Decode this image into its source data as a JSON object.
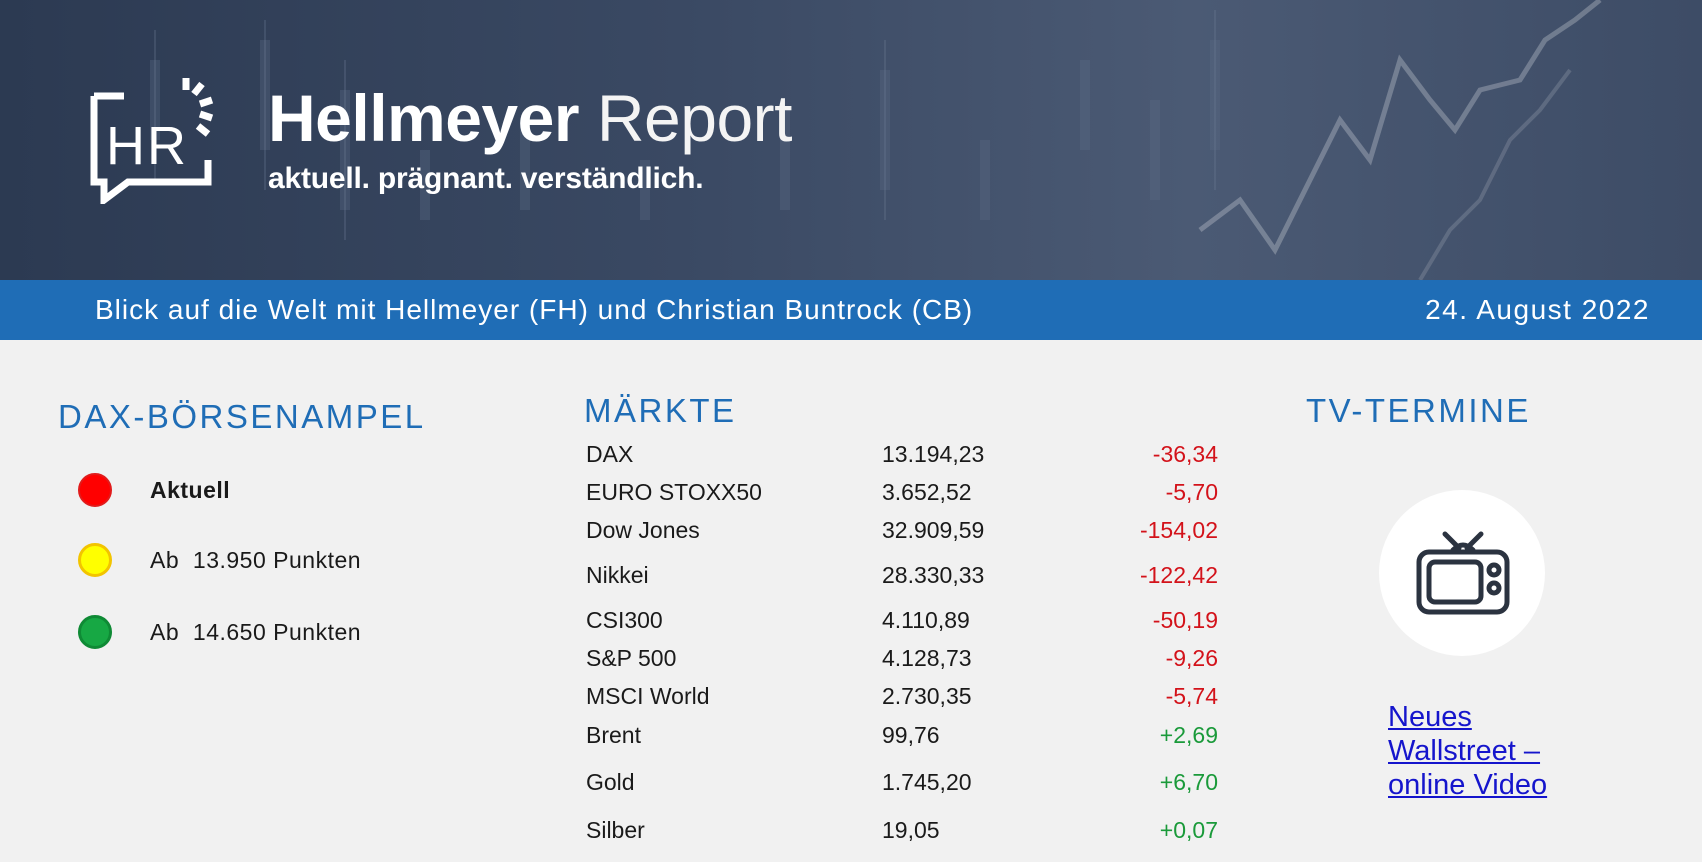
{
  "header": {
    "logo_text": "HR",
    "title_bold": "Hellmeyer",
    "title_light": "Report",
    "tagline": "aktuell. prägnant. verständlich."
  },
  "band": {
    "left_text": "Blick auf die Welt mit Hellmeyer (FH) und Christian Buntrock (CB)",
    "date": "24. August 2022"
  },
  "ampel": {
    "title": "DAX-BÖRSENAMPEL",
    "items": [
      {
        "color": "#ff0000",
        "label": "Aktuell"
      },
      {
        "color": "#ffff00",
        "label": "Ab  13.950 Punkten"
      },
      {
        "color": "#17a844",
        "label": "Ab  14.650 Punkten"
      }
    ]
  },
  "markets": {
    "title": "MÄRKTE",
    "rows": [
      {
        "name": "DAX",
        "value": "13.194,23",
        "change": "-36,34",
        "direction": "down"
      },
      {
        "name": "EURO STOXX50",
        "value": "3.652,52",
        "change": "-5,70",
        "direction": "down"
      },
      {
        "name": "Dow Jones",
        "value": "32.909,59",
        "change": "-154,02",
        "direction": "down"
      },
      {
        "name": "Nikkei",
        "value": "28.330,33",
        "change": "-122,42",
        "direction": "down"
      },
      {
        "name": "CSI300",
        "value": "4.110,89",
        "change": "-50,19",
        "direction": "down"
      },
      {
        "name": "S&P 500",
        "value": "4.128,73",
        "change": "-9,26",
        "direction": "down"
      },
      {
        "name": "MSCI World",
        "value": "2.730,35",
        "change": "-5,74",
        "direction": "down"
      },
      {
        "name": "Brent",
        "value": "99,76",
        "change": "+2,69",
        "direction": "up"
      },
      {
        "name": "Gold",
        "value": "1.745,20",
        "change": "+6,70",
        "direction": "up"
      },
      {
        "name": "Silber",
        "value": "19,05",
        "change": "+0,07",
        "direction": "up"
      }
    ]
  },
  "tv": {
    "title": "TV-TERMINE",
    "icon": "tv-icon",
    "link_text": "Neues Wallstreet – online Video"
  },
  "colors": {
    "accent": "#1f6db6",
    "negative": "#d3121a",
    "positive": "#1a9a3a",
    "link": "#1515cc"
  }
}
